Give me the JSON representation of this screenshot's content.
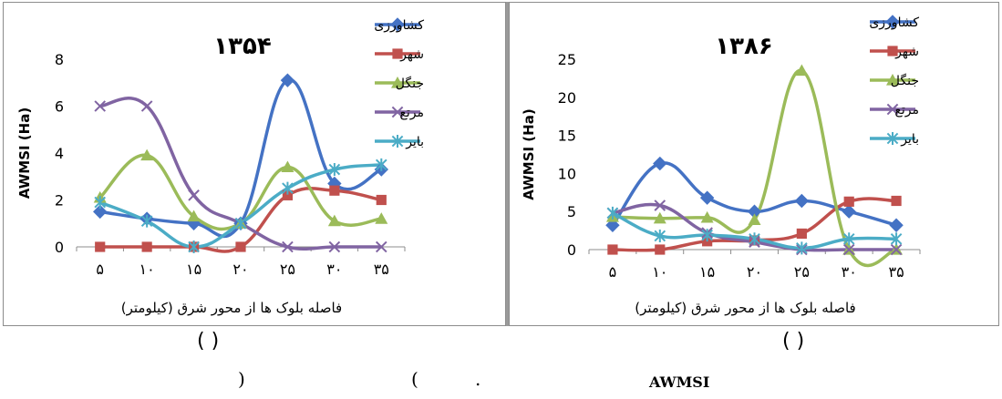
{
  "chart_data": [
    {
      "type": "line",
      "title": "۱۳۵۴",
      "ylabel": "AWMSI (Ha)",
      "xlabel": "فاصله بلوک ها از محور شرق (کیلومتر)",
      "categories": [
        "۵",
        "۱۰",
        "۱۵",
        "۲۰",
        "۲۵",
        "۳۰",
        "۳۵"
      ],
      "x": [
        5,
        10,
        15,
        20,
        25,
        30,
        35
      ],
      "ylim": [
        0,
        8
      ],
      "yticks": [
        "0",
        "2",
        "4",
        "6",
        "8"
      ],
      "yticks_values": [
        0,
        2,
        4,
        6,
        8
      ],
      "grid": false,
      "legend_position": "top-right",
      "series": [
        {
          "name": "کشاورزی",
          "marker": "diamond",
          "color": "#4472C4",
          "values": [
            1.5,
            1.2,
            1.0,
            1.0,
            7.1,
            2.7,
            3.3
          ]
        },
        {
          "name": "شهر",
          "marker": "square",
          "color": "#C0504D",
          "values": [
            0,
            0,
            0,
            0,
            2.2,
            2.4,
            2.0
          ]
        },
        {
          "name": "جنگل",
          "marker": "triangle",
          "color": "#9BBB59",
          "values": [
            2.1,
            3.9,
            1.3,
            1.0,
            3.4,
            1.1,
            1.2
          ]
        },
        {
          "name": "مرتع",
          "marker": "x",
          "color": "#8064A2",
          "values": [
            6.0,
            6.0,
            2.2,
            1.0,
            0,
            0,
            0
          ]
        },
        {
          "name": "بایر",
          "marker": "star",
          "color": "#4BACC6",
          "values": [
            1.9,
            1.1,
            0,
            1.0,
            2.5,
            3.3,
            3.5
          ]
        }
      ]
    },
    {
      "type": "line",
      "title": "۱۳۸۶",
      "ylabel": "AWMSI (Ha)",
      "xlabel": "فاصله بلوک ها از محور شرق (کیلومتر)",
      "categories": [
        "۵",
        "۱۰",
        "۱۵",
        "۲۰",
        "۲۵",
        "۳۰",
        "۳۵"
      ],
      "x": [
        5,
        10,
        15,
        20,
        25,
        30,
        35
      ],
      "ylim": [
        0,
        25
      ],
      "yticks": [
        "0",
        "5",
        "10",
        "15",
        "20",
        "25"
      ],
      "yticks_values": [
        0,
        5,
        10,
        15,
        20,
        25
      ],
      "grid": false,
      "legend_position": "top-right",
      "series": [
        {
          "name": "کشاورزی",
          "marker": "diamond",
          "color": "#4472C4",
          "values": [
            3.2,
            11.3,
            6.8,
            5.0,
            6.4,
            5.0,
            3.2
          ]
        },
        {
          "name": "شهر",
          "marker": "square",
          "color": "#C0504D",
          "values": [
            0,
            0,
            1.1,
            1.2,
            2.1,
            6.3,
            6.4
          ]
        },
        {
          "name": "جنگل",
          "marker": "triangle",
          "color": "#9BBB59",
          "values": [
            4.3,
            4.1,
            4.2,
            3.9,
            23.5,
            0,
            0
          ]
        },
        {
          "name": "مرتع",
          "marker": "x",
          "color": "#8064A2",
          "values": [
            4.8,
            5.8,
            2.2,
            1.0,
            0,
            0,
            0
          ]
        },
        {
          "name": "بایر",
          "marker": "star",
          "color": "#4BACC6",
          "values": [
            4.8,
            1.8,
            1.9,
            1.4,
            0.2,
            1.4,
            1.4
          ]
        }
      ]
    }
  ],
  "captions": {
    "left": "( )",
    "right": "( )",
    "footer_paren_close": ")",
    "footer_paren_open": "(",
    "footer_dot": ".",
    "footer_paren_open_2": "(",
    "footer_awmsi": "AWMSI"
  }
}
